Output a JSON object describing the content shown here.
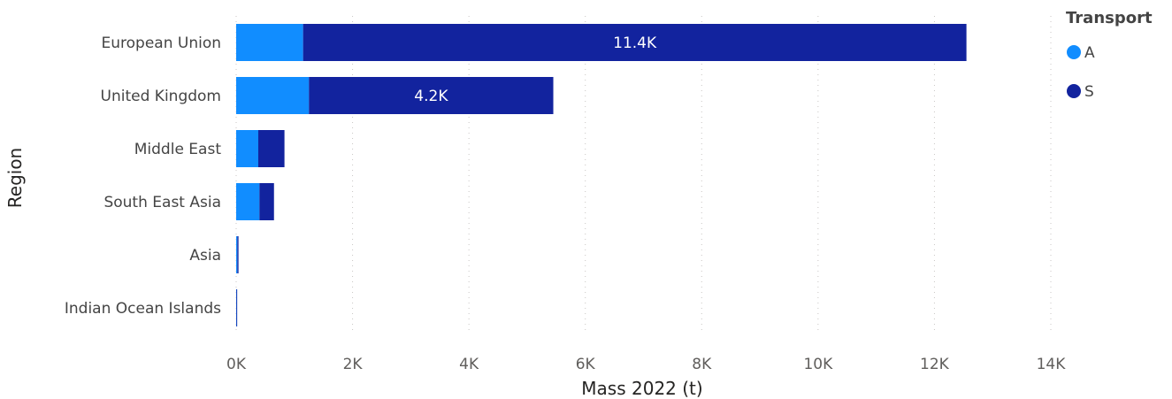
{
  "chart_data": {
    "type": "bar",
    "orientation": "horizontal",
    "stacked": true,
    "categories": [
      "European Union",
      "United Kingdom",
      "Middle East",
      "South East Asia",
      "Asia",
      "Indian Ocean Islands"
    ],
    "series": [
      {
        "name": "A",
        "color": "#118DFF",
        "values": [
          1150,
          1250,
          380,
          400,
          20,
          5
        ]
      },
      {
        "name": "S",
        "color": "#12239E",
        "values": [
          11400,
          4200,
          450,
          250,
          20,
          5
        ]
      }
    ],
    "data_labels": {
      "S": [
        "11.4K",
        "4.2K",
        "",
        "",
        "",
        ""
      ]
    },
    "xlabel": "Mass 2022 (t)",
    "ylabel": "Region",
    "xlim": [
      0,
      14000
    ],
    "xticks": [
      0,
      2000,
      4000,
      6000,
      8000,
      10000,
      12000,
      14000
    ],
    "xtick_labels": [
      "0K",
      "2K",
      "4K",
      "6K",
      "8K",
      "10K",
      "12K",
      "14K"
    ],
    "gridlines": true,
    "legend": {
      "title": "Transport",
      "position": "top-right",
      "items": [
        "A",
        "S"
      ]
    }
  }
}
